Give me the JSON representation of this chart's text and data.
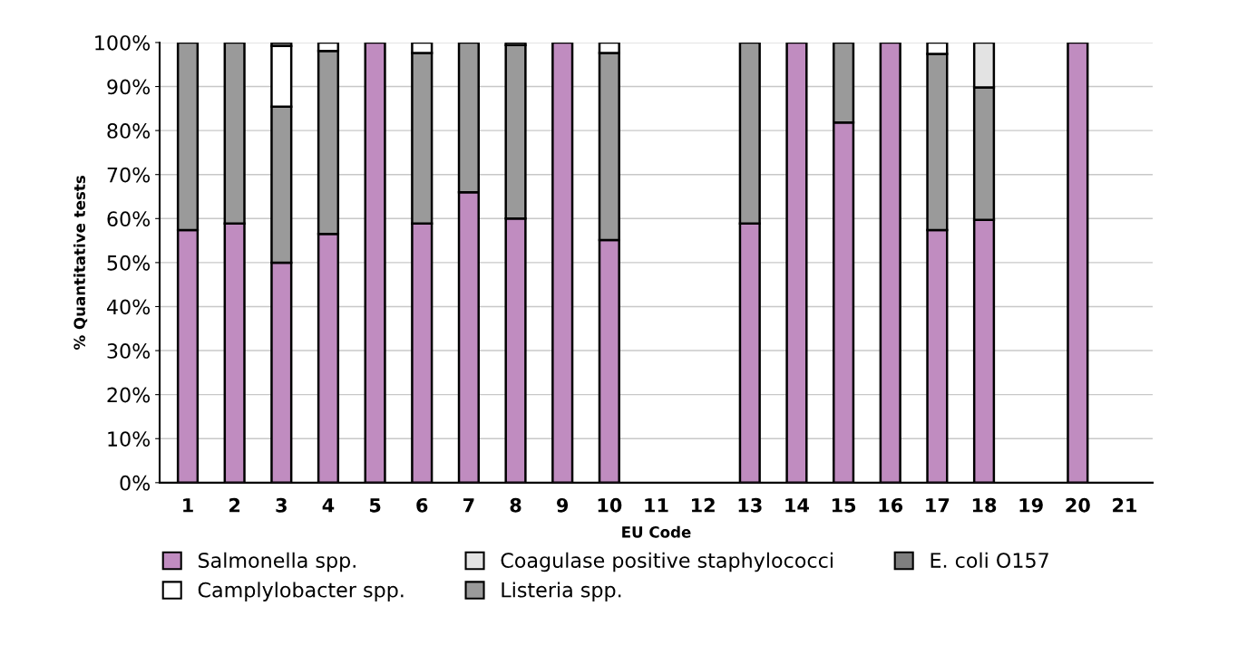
{
  "chart_data": {
    "type": "bar",
    "stacked": true,
    "xlabel": "EU Code",
    "ylabel": "% Quantitative tests",
    "categories": [
      "1",
      "2",
      "3",
      "4",
      "5",
      "6",
      "7",
      "8",
      "9",
      "10",
      "11",
      "12",
      "13",
      "14",
      "15",
      "16",
      "17",
      "18",
      "19",
      "20",
      "21"
    ],
    "series": [
      {
        "name": "Salmonella spp.",
        "color": "#c08cc0",
        "values": [
          57.4,
          58.9,
          50.0,
          56.5,
          100,
          58.9,
          66.0,
          60.0,
          100,
          55.1,
          null,
          null,
          58.9,
          100,
          81.8,
          100,
          57.4,
          59.7,
          null,
          100,
          null
        ]
      },
      {
        "name": "Listeria spp.",
        "color": "#9a9a9a",
        "values": [
          42.6,
          41.1,
          35.4,
          41.6,
          null,
          38.7,
          34.0,
          39.4,
          null,
          42.5,
          null,
          null,
          41.1,
          null,
          18.2,
          null,
          40.0,
          30.1,
          null,
          null,
          null
        ]
      },
      {
        "name": "Camplylobacter spp.",
        "color": "#ffffff",
        "values": [
          null,
          null,
          13.8,
          1.9,
          null,
          2.4,
          null,
          0.6,
          null,
          2.4,
          null,
          null,
          null,
          null,
          null,
          null,
          2.6,
          null,
          null,
          null,
          null
        ]
      },
      {
        "name": "Coagulase positive staphylococci",
        "color": "#e3e3e3",
        "values": [
          null,
          null,
          null,
          null,
          null,
          null,
          null,
          null,
          null,
          null,
          null,
          null,
          null,
          null,
          null,
          null,
          null,
          10.2,
          null,
          null,
          null
        ]
      },
      {
        "name": "E. coli O157",
        "color": "#7f7f7f",
        "values": [
          null,
          null,
          0.8,
          null,
          null,
          null,
          null,
          null,
          null,
          null,
          null,
          null,
          null,
          null,
          null,
          null,
          null,
          null,
          null,
          null,
          null
        ]
      }
    ],
    "ylim": [
      0,
      100
    ],
    "yticks": [
      {
        "value": 0,
        "label": "0%"
      },
      {
        "value": 10,
        "label": "10%"
      },
      {
        "value": 20,
        "label": "20%"
      },
      {
        "value": 30,
        "label": "30%"
      },
      {
        "value": 40,
        "label": "40%"
      },
      {
        "value": 50,
        "label": "50%"
      },
      {
        "value": 60,
        "label": "60%"
      },
      {
        "value": 70,
        "label": "70%"
      },
      {
        "value": 80,
        "label": "80%"
      },
      {
        "value": 90,
        "label": "90%"
      },
      {
        "value": 100,
        "label": "100%"
      }
    ],
    "grid": "y",
    "legend": "bottom"
  }
}
